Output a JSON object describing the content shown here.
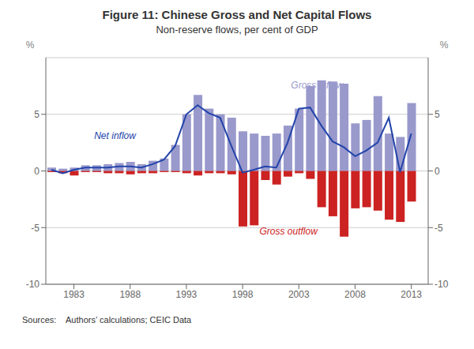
{
  "chart_data": {
    "type": "bar",
    "title": "Figure 11: Chinese Gross and Net Capital Flows",
    "subtitle": "Non-reserve flows, per cent of GDP",
    "source": "Sources:    Authors’ calculations; CEIC Data",
    "y_label": "%",
    "y2_label": "%",
    "x": [
      1981,
      1982,
      1983,
      1984,
      1985,
      1986,
      1987,
      1988,
      1989,
      1990,
      1991,
      1992,
      1993,
      1994,
      1995,
      1996,
      1997,
      1998,
      1999,
      2000,
      2001,
      2002,
      2003,
      2004,
      2005,
      2006,
      2007,
      2008,
      2009,
      2010,
      2011,
      2012,
      2013
    ],
    "series": [
      {
        "name": "Gross inflow",
        "type": "bar",
        "color": "#9999cc",
        "values": [
          0.3,
          0.2,
          0.3,
          0.5,
          0.5,
          0.6,
          0.7,
          0.8,
          0.6,
          0.9,
          1.1,
          2.3,
          5.0,
          6.7,
          5.5,
          5.0,
          4.7,
          3.5,
          3.3,
          3.1,
          3.3,
          4.0,
          5.5,
          7.5,
          8.0,
          7.9,
          7.7,
          4.2,
          4.5,
          6.6,
          3.3,
          3.0,
          6.0
        ]
      },
      {
        "name": "Gross outflow",
        "type": "bar",
        "color": "#cc2222",
        "values": [
          -0.1,
          -0.2,
          -0.4,
          -0.1,
          -0.1,
          -0.2,
          -0.2,
          -0.3,
          -0.2,
          -0.2,
          -0.1,
          -0.1,
          -0.2,
          -0.4,
          -0.2,
          -0.2,
          -0.3,
          -4.9,
          -4.8,
          -0.8,
          -1.2,
          -0.5,
          -0.2,
          -0.7,
          -3.2,
          -4.0,
          -5.8,
          -3.3,
          -3.2,
          -3.5,
          -4.3,
          -4.5,
          -2.7
        ]
      },
      {
        "name": "Net inflow",
        "type": "line",
        "color": "#2244aa",
        "values": [
          0.1,
          -0.2,
          0.1,
          0.3,
          0.3,
          0.3,
          0.4,
          0.4,
          0.3,
          0.6,
          1.0,
          2.2,
          5.0,
          5.8,
          5.1,
          4.7,
          2.2,
          -0.15,
          0.1,
          0.4,
          0.3,
          2.5,
          5.5,
          5.6,
          4.0,
          2.6,
          2.1,
          1.3,
          1.8,
          2.5,
          4.7,
          -0.1,
          3.3
        ]
      }
    ],
    "xlim": [
      1980.5,
      2014.5
    ],
    "xticks": [
      1983,
      1988,
      1993,
      1998,
      2003,
      2008,
      2013
    ],
    "ylim": [
      -10,
      10
    ],
    "yticks": [
      -10,
      -5,
      0,
      5
    ],
    "y2lim": [
      -10,
      10
    ],
    "y2ticks": [
      -10,
      -5,
      0,
      5
    ],
    "grid": true,
    "annotations": [
      {
        "text": "Gross inflow",
        "x": 2002.3,
        "y": 7.3,
        "color": "#9999cc"
      },
      {
        "text": "Net inflow",
        "x": 1984.8,
        "y": 2.85,
        "color": "#2244aa"
      },
      {
        "text": "Gross outflow",
        "x": 1999.5,
        "y": -5.6,
        "color": "#cc2222"
      }
    ]
  }
}
